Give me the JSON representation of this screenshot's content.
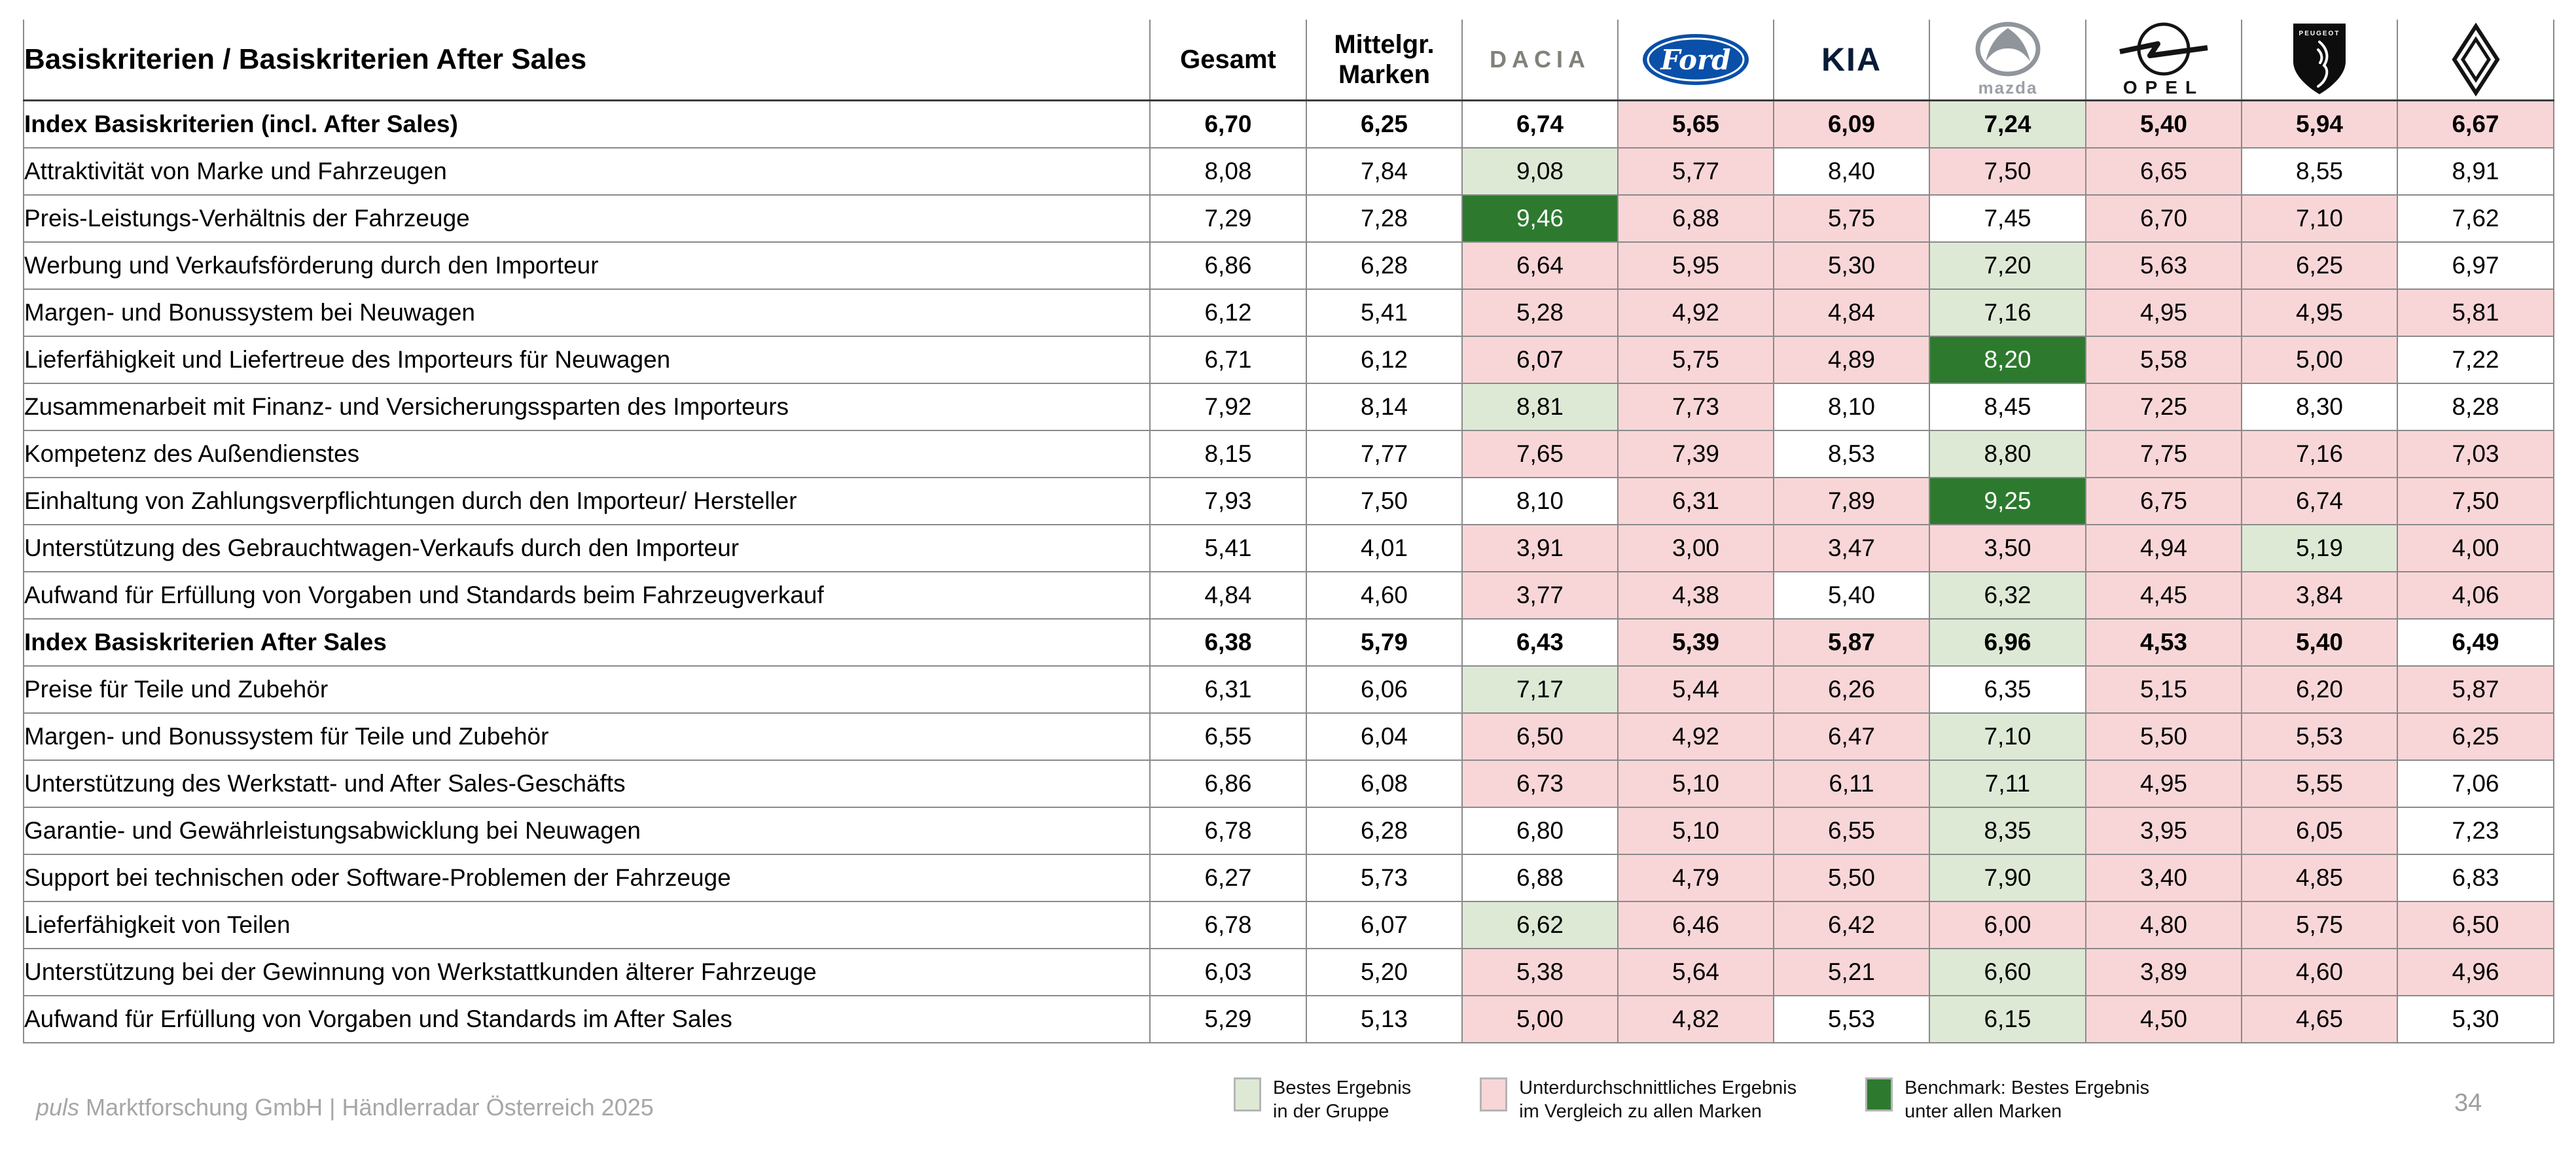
{
  "header": {
    "title": "Basiskriterien / Basiskriterien After Sales",
    "col_gesamt": "Gesamt",
    "col_mittelgr": "Mittelgr. Marken",
    "brands": [
      "Dacia",
      "Ford",
      "Kia",
      "Mazda",
      "Opel",
      "Peugeot",
      "Renault"
    ],
    "logo_words": {
      "dacia": "DACIA",
      "ford": "Ford",
      "kia": "KIA",
      "mazda": "mazda",
      "opel": "OPEL",
      "peugeot": "PEUGEOT"
    }
  },
  "colors": {
    "below_average": "#f8d6d8",
    "best_in_group": "#dde9d5",
    "benchmark_best": "#2d7a2f"
  },
  "chart_data": {
    "type": "table",
    "title": "Basiskriterien / Basiskriterien After Sales",
    "columns": [
      "Gesamt",
      "Mittelgr. Marken",
      "Dacia",
      "Ford",
      "Kia",
      "Mazda",
      "Opel",
      "Peugeot",
      "Renault"
    ],
    "cell_color_codes": {
      "w": "none",
      "p": "below-average-vs-all-brands",
      "g": "best-in-group",
      "G": "benchmark-best-of-all-brands"
    },
    "rows": [
      {
        "label": "Index Basiskriterien (incl. After Sales)",
        "bold": true,
        "values": [
          "6,70",
          "6,25",
          "6,74",
          "5,65",
          "6,09",
          "7,24",
          "5,40",
          "5,94",
          "6,67"
        ],
        "colors": [
          "w",
          "w",
          "w",
          "p",
          "p",
          "g",
          "p",
          "p",
          "p"
        ]
      },
      {
        "label": "Attraktivität von Marke und Fahrzeugen",
        "bold": false,
        "values": [
          "8,08",
          "7,84",
          "9,08",
          "5,77",
          "8,40",
          "7,50",
          "6,65",
          "8,55",
          "8,91"
        ],
        "colors": [
          "w",
          "w",
          "g",
          "p",
          "w",
          "p",
          "p",
          "w",
          "w"
        ]
      },
      {
        "label": "Preis-Leistungs-Verhältnis der Fahrzeuge",
        "bold": false,
        "values": [
          "7,29",
          "7,28",
          "9,46",
          "6,88",
          "5,75",
          "7,45",
          "6,70",
          "7,10",
          "7,62"
        ],
        "colors": [
          "w",
          "w",
          "G",
          "p",
          "p",
          "w",
          "p",
          "p",
          "w"
        ]
      },
      {
        "label": "Werbung und Verkaufsförderung durch den Importeur",
        "bold": false,
        "values": [
          "6,86",
          "6,28",
          "6,64",
          "5,95",
          "5,30",
          "7,20",
          "5,63",
          "6,25",
          "6,97"
        ],
        "colors": [
          "w",
          "w",
          "p",
          "p",
          "p",
          "g",
          "p",
          "p",
          "w"
        ]
      },
      {
        "label": "Margen- und Bonussystem bei Neuwagen",
        "bold": false,
        "values": [
          "6,12",
          "5,41",
          "5,28",
          "4,92",
          "4,84",
          "7,16",
          "4,95",
          "4,95",
          "5,81"
        ],
        "colors": [
          "w",
          "w",
          "p",
          "p",
          "p",
          "g",
          "p",
          "p",
          "p"
        ]
      },
      {
        "label": "Lieferfähigkeit und Liefertreue des Importeurs für Neuwagen",
        "bold": false,
        "values": [
          "6,71",
          "6,12",
          "6,07",
          "5,75",
          "4,89",
          "8,20",
          "5,58",
          "5,00",
          "7,22"
        ],
        "colors": [
          "w",
          "w",
          "p",
          "p",
          "p",
          "G",
          "p",
          "p",
          "w"
        ]
      },
      {
        "label": "Zusammenarbeit mit Finanz- und Versicherungssparten des Importeurs",
        "bold": false,
        "values": [
          "7,92",
          "8,14",
          "8,81",
          "7,73",
          "8,10",
          "8,45",
          "7,25",
          "8,30",
          "8,28"
        ],
        "colors": [
          "w",
          "w",
          "g",
          "p",
          "w",
          "w",
          "p",
          "w",
          "w"
        ]
      },
      {
        "label": "Kompetenz des Außendienstes",
        "bold": false,
        "values": [
          "8,15",
          "7,77",
          "7,65",
          "7,39",
          "8,53",
          "8,80",
          "7,75",
          "7,16",
          "7,03"
        ],
        "colors": [
          "w",
          "w",
          "p",
          "p",
          "w",
          "g",
          "p",
          "p",
          "p"
        ]
      },
      {
        "label": "Einhaltung von Zahlungsverpflichtungen durch den Importeur/ Hersteller",
        "bold": false,
        "values": [
          "7,93",
          "7,50",
          "8,10",
          "6,31",
          "7,89",
          "9,25",
          "6,75",
          "6,74",
          "7,50"
        ],
        "colors": [
          "w",
          "w",
          "w",
          "p",
          "p",
          "G",
          "p",
          "p",
          "p"
        ]
      },
      {
        "label": "Unterstützung des Gebrauchtwagen-Verkaufs durch den Importeur",
        "bold": false,
        "values": [
          "5,41",
          "4,01",
          "3,91",
          "3,00",
          "3,47",
          "3,50",
          "4,94",
          "5,19",
          "4,00"
        ],
        "colors": [
          "w",
          "w",
          "p",
          "p",
          "p",
          "p",
          "p",
          "g",
          "p"
        ]
      },
      {
        "label": "Aufwand für Erfüllung von Vorgaben und Standards beim Fahrzeugverkauf",
        "bold": false,
        "values": [
          "4,84",
          "4,60",
          "3,77",
          "4,38",
          "5,40",
          "6,32",
          "4,45",
          "3,84",
          "4,06"
        ],
        "colors": [
          "w",
          "w",
          "p",
          "p",
          "w",
          "g",
          "p",
          "p",
          "p"
        ]
      },
      {
        "label": "Index Basiskriterien After Sales",
        "bold": true,
        "values": [
          "6,38",
          "5,79",
          "6,43",
          "5,39",
          "5,87",
          "6,96",
          "4,53",
          "5,40",
          "6,49"
        ],
        "colors": [
          "w",
          "w",
          "w",
          "p",
          "p",
          "g",
          "p",
          "p",
          "w"
        ]
      },
      {
        "label": "Preise für Teile und Zubehör",
        "bold": false,
        "values": [
          "6,31",
          "6,06",
          "7,17",
          "5,44",
          "6,26",
          "6,35",
          "5,15",
          "6,20",
          "5,87"
        ],
        "colors": [
          "w",
          "w",
          "g",
          "p",
          "p",
          "w",
          "p",
          "p",
          "p"
        ]
      },
      {
        "label": "Margen- und Bonussystem für Teile und Zubehör",
        "bold": false,
        "values": [
          "6,55",
          "6,04",
          "6,50",
          "4,92",
          "6,47",
          "7,10",
          "5,50",
          "5,53",
          "6,25"
        ],
        "colors": [
          "w",
          "w",
          "p",
          "p",
          "p",
          "g",
          "p",
          "p",
          "p"
        ]
      },
      {
        "label": "Unterstützung des Werkstatt- und After Sales-Geschäfts",
        "bold": false,
        "values": [
          "6,86",
          "6,08",
          "6,73",
          "5,10",
          "6,11",
          "7,11",
          "4,95",
          "5,55",
          "7,06"
        ],
        "colors": [
          "w",
          "w",
          "p",
          "p",
          "p",
          "g",
          "p",
          "p",
          "w"
        ]
      },
      {
        "label": "Garantie- und Gewährleistungsabwicklung bei Neuwagen",
        "bold": false,
        "values": [
          "6,78",
          "6,28",
          "6,80",
          "5,10",
          "6,55",
          "8,35",
          "3,95",
          "6,05",
          "7,23"
        ],
        "colors": [
          "w",
          "w",
          "w",
          "p",
          "p",
          "g",
          "p",
          "p",
          "w"
        ]
      },
      {
        "label": "Support bei technischen oder Software-Problemen der Fahrzeuge",
        "bold": false,
        "values": [
          "6,27",
          "5,73",
          "6,88",
          "4,79",
          "5,50",
          "7,90",
          "3,40",
          "4,85",
          "6,83"
        ],
        "colors": [
          "w",
          "w",
          "w",
          "p",
          "p",
          "g",
          "p",
          "p",
          "w"
        ]
      },
      {
        "label": "Lieferfähigkeit von Teilen",
        "bold": false,
        "values": [
          "6,78",
          "6,07",
          "6,62",
          "6,46",
          "6,42",
          "6,00",
          "4,80",
          "5,75",
          "6,50"
        ],
        "colors": [
          "w",
          "w",
          "g",
          "p",
          "p",
          "p",
          "p",
          "p",
          "p"
        ]
      },
      {
        "label": "Unterstützung bei der Gewinnung von Werkstattkunden älterer Fahrzeuge",
        "bold": false,
        "values": [
          "6,03",
          "5,20",
          "5,38",
          "5,64",
          "5,21",
          "6,60",
          "3,89",
          "4,60",
          "4,96"
        ],
        "colors": [
          "w",
          "w",
          "p",
          "p",
          "p",
          "g",
          "p",
          "p",
          "p"
        ]
      },
      {
        "label": "Aufwand für Erfüllung von Vorgaben und Standards im After Sales",
        "bold": false,
        "values": [
          "5,29",
          "5,13",
          "5,00",
          "4,82",
          "5,53",
          "6,15",
          "4,50",
          "4,65",
          "5,30"
        ],
        "colors": [
          "w",
          "w",
          "p",
          "p",
          "w",
          "g",
          "p",
          "p",
          "w"
        ]
      }
    ]
  },
  "legend": {
    "items": [
      {
        "code": "best_in_group",
        "line1": "Bestes Ergebnis",
        "line2": "in der Gruppe"
      },
      {
        "code": "below_average",
        "line1": "Unterdurchschnittliches Ergebnis",
        "line2": "im Vergleich zu allen Marken"
      },
      {
        "code": "benchmark_best",
        "line1": "Benchmark: Bestes Ergebnis",
        "line2": "unter allen Marken"
      }
    ]
  },
  "footer": {
    "brand": "puls",
    "text": " Marktforschung GmbH | Händlerradar Österreich 2025",
    "page": "34"
  }
}
